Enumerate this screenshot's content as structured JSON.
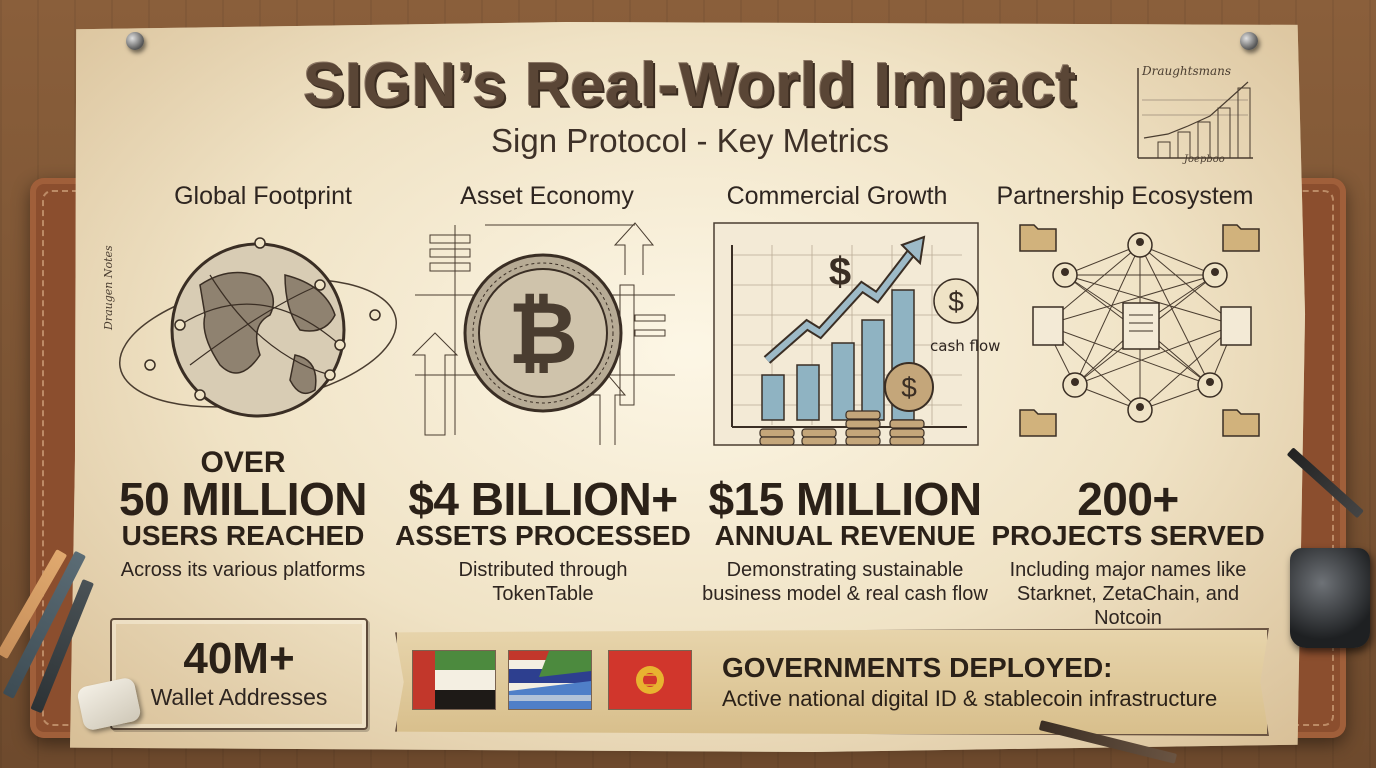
{
  "header": {
    "title": "SIGN’s Real-World Impact",
    "subtitle": "Sign Protocol - Key Metrics"
  },
  "decor": {
    "mini_chart_top_label": "Draughtsmans",
    "mini_chart_bottom_label": "Joepboo",
    "side_note": "Draugen Notes",
    "cash_flow_label": "cash flow"
  },
  "columns": [
    {
      "heading": "Global Footprint",
      "icon": "globe-icon",
      "prefix": "OVER",
      "value": "50 MILLION",
      "unit": "USERS REACHED",
      "description": "Across its various platforms"
    },
    {
      "heading": "Asset Economy",
      "icon": "bitcoin-coin-icon",
      "prefix": "",
      "value": "$4 BILLION+",
      "unit": "ASSETS PROCESSED",
      "description": "Distributed through TokenTable"
    },
    {
      "heading": "Commercial Growth",
      "icon": "growth-chart-icon",
      "prefix": "",
      "value": "$15 MILLION",
      "unit": "ANNUAL REVENUE",
      "description": "Demonstrating sustainable business model & real cash flow"
    },
    {
      "heading": "Partnership Ecosystem",
      "icon": "network-icon",
      "prefix": "",
      "value": "200+",
      "unit": "PROJECTS SERVED",
      "description": "Including major names like Starknet, ZetaChain, and Notcoin"
    }
  ],
  "wallets": {
    "value": "40M+",
    "label": "Wallet Addresses"
  },
  "governments": {
    "title": "GOVERNMENTS DEPLOYED:",
    "description": "Active national digital ID & stablecoin infrastructure",
    "flags": [
      "uae-flag-icon",
      "sierra-leone-thailand-flag-icon",
      "kyrgyzstan-flag-icon"
    ]
  },
  "colors": {
    "paper": "#efe3c6",
    "ink": "#2b2118",
    "leather": "#8b4e2e",
    "wood": "#7a5434"
  }
}
